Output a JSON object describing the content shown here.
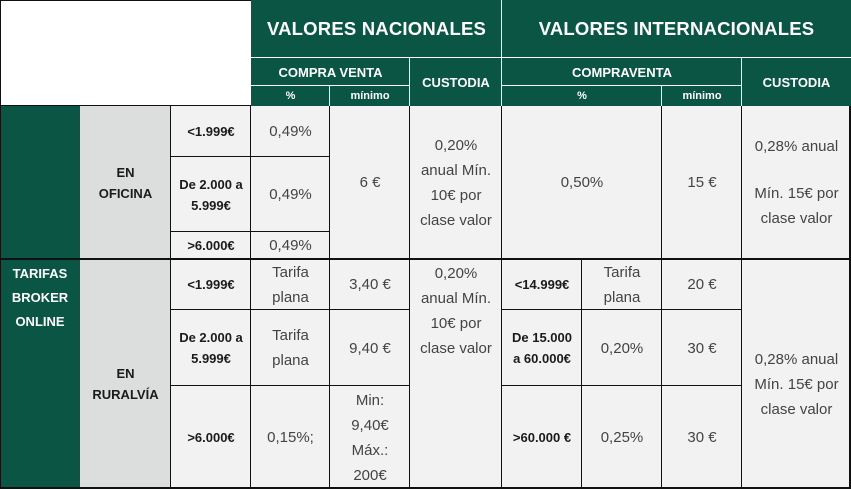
{
  "header": {
    "nacionales_title": "VALORES NACIONALES",
    "internacionales_title": "VALORES INTERNACIONALES",
    "compra_venta": "COMPRA VENTA",
    "compraventa": "COMPRAVENTA",
    "custodia_nac": "CUSTODIA",
    "custodia_int": "CUSTODIA",
    "pct_nac": "%",
    "minimo_nac": "mínimo",
    "pct_int": "%",
    "minimo_int": "mínimo"
  },
  "side": {
    "tarifas_broker_online": "TARIFAS BROKER ONLINE",
    "en_oficina": "EN OFICINA",
    "en_ruralvia": "EN RURALVÍA"
  },
  "oficina": {
    "tramos": [
      "<1.999€",
      "De 2.000 a 5.999€",
      ">6.000€"
    ],
    "pct": [
      "0,49%",
      "0,49%",
      "0,49%"
    ],
    "minimo": "6 €",
    "custodia_nac": "0,20% anual Mín. 10€ por clase valor",
    "int_pct": "0,50%",
    "int_minimo": "15 €",
    "custodia_int_1": "0,28% anual",
    "custodia_int_2": "Mín. 15€ por clase valor"
  },
  "ruralvia": {
    "tramos": [
      "<1.999€",
      "De 2.000 a 5.999€",
      ">6.000€"
    ],
    "pct": [
      "Tarifa plana",
      "Tarifa plana",
      "0,15%;"
    ],
    "minimo": [
      "3,40 €",
      "9,40 €",
      "Min: 9,40€ Máx.: 200€"
    ],
    "custodia_nac": "0,20% anual Mín. 10€ por clase valor",
    "int_tramos": [
      "<14.999€",
      "De 15.000 a 60.000€",
      ">60.000 €"
    ],
    "int_pct": [
      "Tarifa plana",
      "0,20%",
      "0,25%"
    ],
    "int_minimo": [
      "20 €",
      "30 €",
      "30 €"
    ],
    "custodia_int": "0,28% anual Mín. 15€ por clase valor"
  }
}
